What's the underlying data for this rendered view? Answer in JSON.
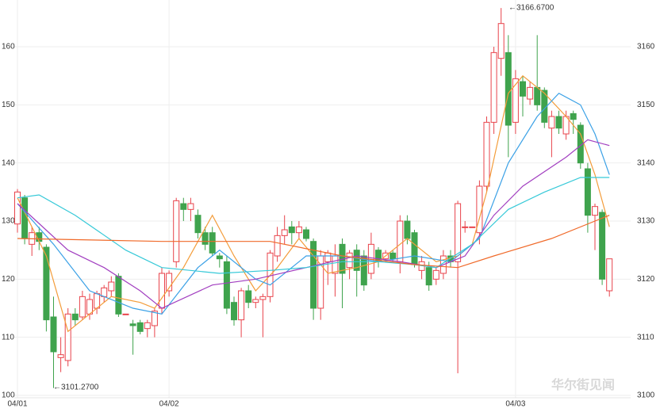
{
  "chart_data": {
    "type": "candlestick",
    "categories": [
      "04/01",
      null,
      null,
      null,
      null,
      null,
      null,
      null,
      null,
      null,
      null,
      null,
      null,
      null,
      null,
      null,
      null,
      null,
      null,
      null,
      null,
      "04/02",
      null,
      null,
      null,
      null,
      null,
      null,
      null,
      null,
      null,
      null,
      null,
      null,
      null,
      null,
      null,
      null,
      null,
      null,
      null,
      null,
      null,
      null,
      null,
      null,
      null,
      null,
      null,
      null,
      null,
      null,
      null,
      null,
      null,
      null,
      null,
      null,
      null,
      null,
      null,
      null,
      null,
      null,
      null,
      null,
      null,
      null,
      null,
      "04/03",
      null,
      null,
      null,
      null,
      null,
      null,
      null,
      null,
      null,
      null,
      null,
      null,
      null
    ],
    "open": [
      3129.5,
      3134,
      3126,
      3128,
      3125.5,
      3113.5,
      3106.5,
      3106,
      3114,
      3113.5,
      3114,
      3115,
      3117,
      3118,
      3120.5,
      3114,
      3112.3,
      3112.5,
      3111.5,
      3112,
      3115,
      3118,
      3123,
      3133,
      3132,
      3131,
      3128,
      3128,
      3124,
      3123,
      3116,
      3113,
      3118,
      3116,
      3116.5,
      3117,
      3124,
      3127.5,
      3129,
      3128,
      3128.5,
      3126.5,
      3115,
      3123,
      3121,
      3126,
      3122,
      3125,
      3124,
      3121,
      3125,
      3123.5,
      3124.5,
      3123,
      3130,
      3128,
      3121.5,
      3122,
      3120,
      3121,
      3124,
      3123,
      3129,
      3129,
      3128,
      3136,
      3147,
      3158,
      3159,
      3147,
      3154,
      3151,
      3153,
      3152.5,
      3146,
      3148,
      3145,
      3148.5,
      3146.5,
      3139,
      3131,
      3131.5,
      3118
    ],
    "high": [
      3135.5,
      3134.5,
      3129,
      3129,
      3126,
      3117,
      3110,
      3115,
      3115,
      3118,
      3117.5,
      3118,
      3119,
      3120.5,
      3121,
      3114,
      3113,
      3113,
      3113,
      3115,
      3122,
      3121.5,
      3134,
      3134,
      3134,
      3132,
      3129,
      3129,
      3124.5,
      3124,
      3117,
      3118.5,
      3119,
      3117,
      3117.5,
      3125,
      3129,
      3131,
      3130,
      3130,
      3129,
      3127,
      3125,
      3125,
      3126,
      3127,
      3125,
      3126,
      3125,
      3128,
      3125.5,
      3125,
      3125,
      3131,
      3131,
      3128.5,
      3124,
      3123,
      3122,
      3125,
      3125,
      3133.5,
      3130,
      3129,
      3137,
      3148,
      3160,
      3166.67,
      3162,
      3156,
      3155,
      3154,
      3162,
      3153,
      3149,
      3149,
      3149,
      3149,
      3147,
      3140,
      3133,
      3132,
      3123.5
    ],
    "low": [
      3128,
      3126,
      3124,
      3125,
      3111,
      3101.27,
      3104,
      3105,
      3112,
      3113,
      3113,
      3114,
      3116,
      3117,
      3113.5,
      3114,
      3107,
      3110.5,
      3110,
      3110,
      3114,
      3117,
      3122,
      3130,
      3130,
      3127,
      3125,
      3124,
      3122,
      3114,
      3112,
      3110,
      3115,
      3115,
      3110,
      3116,
      3123,
      3126,
      3126,
      3127,
      3126.5,
      3113,
      3113,
      3119,
      3117,
      3115,
      3120,
      3117,
      3118,
      3120,
      3122,
      3123,
      3123,
      3121,
      3126,
      3122,
      3120,
      3118,
      3119,
      3120,
      3122,
      3103.8,
      3128,
      3129,
      3126,
      3135,
      3145,
      3155,
      3141,
      3145,
      3148,
      3150,
      3149,
      3146,
      3141,
      3145,
      3144,
      3145,
      3139,
      3128,
      3125,
      3119,
      3117
    ],
    "close": [
      3135,
      3127,
      3128,
      3126.5,
      3113,
      3107.5,
      3107,
      3114,
      3113,
      3117,
      3116.5,
      3117.5,
      3118.5,
      3119.5,
      3114,
      3114,
      3112,
      3111,
      3112.5,
      3114.5,
      3121,
      3121,
      3133.5,
      3132,
      3133,
      3128,
      3126,
      3124.5,
      3123.5,
      3115,
      3113,
      3118,
      3116,
      3116.5,
      3117,
      3124.5,
      3127.5,
      3128.5,
      3128,
      3129,
      3127,
      3115,
      3124,
      3124.5,
      3124,
      3121,
      3124.5,
      3121.5,
      3119,
      3126,
      3123,
      3124.5,
      3123.5,
      3130,
      3127,
      3122.5,
      3123,
      3119,
      3121.5,
      3124,
      3123,
      3133,
      3129,
      3129,
      3136,
      3147,
      3159,
      3164,
      3146.5,
      3154.5,
      3151.5,
      3153,
      3150,
      3147,
      3148,
      3146,
      3148,
      3147.5,
      3140,
      3131,
      3132.5,
      3120,
      3123.5
    ],
    "up_color": "#e8434b",
    "down_color": "#3fa34d",
    "series": [
      {
        "color": "#f39c3a",
        "x": [
          0,
          4,
          7,
          10,
          13,
          17,
          19,
          23,
          27,
          30,
          33,
          36,
          39,
          41,
          43,
          47,
          50,
          54,
          58,
          61,
          63,
          65,
          68,
          70,
          73,
          76,
          78,
          80,
          82
        ],
        "values": [
          3134,
          3124,
          3111,
          3114,
          3117,
          3116,
          3115,
          3122,
          3131,
          3124,
          3118,
          3122,
          3127,
          3124,
          3121,
          3122,
          3123,
          3127,
          3123,
          3124,
          3126,
          3135,
          3152,
          3155,
          3152,
          3148,
          3145,
          3138,
          3129
        ]
      },
      {
        "color": "#3ba1e6",
        "x": [
          0,
          5,
          10,
          16,
          20,
          25,
          28,
          33,
          35,
          40,
          45,
          50,
          55,
          60,
          64,
          68,
          72,
          75,
          78,
          80,
          82
        ],
        "values": [
          3133,
          3126,
          3118,
          3115,
          3114,
          3122,
          3125,
          3120,
          3119,
          3124,
          3124,
          3123,
          3124,
          3123,
          3127,
          3140,
          3148,
          3152,
          3150,
          3145,
          3138
        ]
      },
      {
        "color": "#a23fc0",
        "x": [
          0,
          7,
          12,
          17,
          20,
          27,
          33,
          40,
          47,
          53,
          58,
          62,
          66,
          70,
          76,
          79,
          82
        ],
        "values": [
          3133,
          3125,
          3122,
          3118,
          3115,
          3119,
          3120,
          3122,
          3124,
          3123,
          3122,
          3124,
          3131,
          3136,
          3141,
          3144,
          3143
        ]
      },
      {
        "color": "#36c9d8",
        "x": [
          0,
          3,
          8,
          15,
          20,
          28,
          35,
          40,
          45,
          50,
          55,
          58,
          63,
          68,
          73,
          78,
          82
        ],
        "values": [
          3134,
          3134.5,
          3131,
          3125,
          3122,
          3121,
          3121.5,
          3122,
          3123,
          3123,
          3122.5,
          3122,
          3126,
          3132,
          3135,
          3137.5,
          3137.5
        ]
      },
      {
        "color": "#f06a2a",
        "x": [
          0,
          20,
          35,
          45,
          55,
          61,
          66,
          74,
          80,
          82
        ],
        "values": [
          3127,
          3126.5,
          3126.5,
          3124,
          3122.5,
          3122,
          3124,
          3127,
          3130,
          3131
        ]
      }
    ],
    "ylim": [
      98.5,
      168.05
    ],
    "yticks": [
      100,
      110,
      120,
      130,
      140,
      150,
      160
    ],
    "y2lim": [
      3098.5,
      3168.05
    ],
    "y2ticks": [
      3100,
      3110,
      3120,
      3130,
      3140,
      3150,
      3160
    ],
    "grid": true,
    "annotations": [
      "←3101.2700",
      "←3166.6700"
    ],
    "watermark": "华尔街见闻"
  }
}
